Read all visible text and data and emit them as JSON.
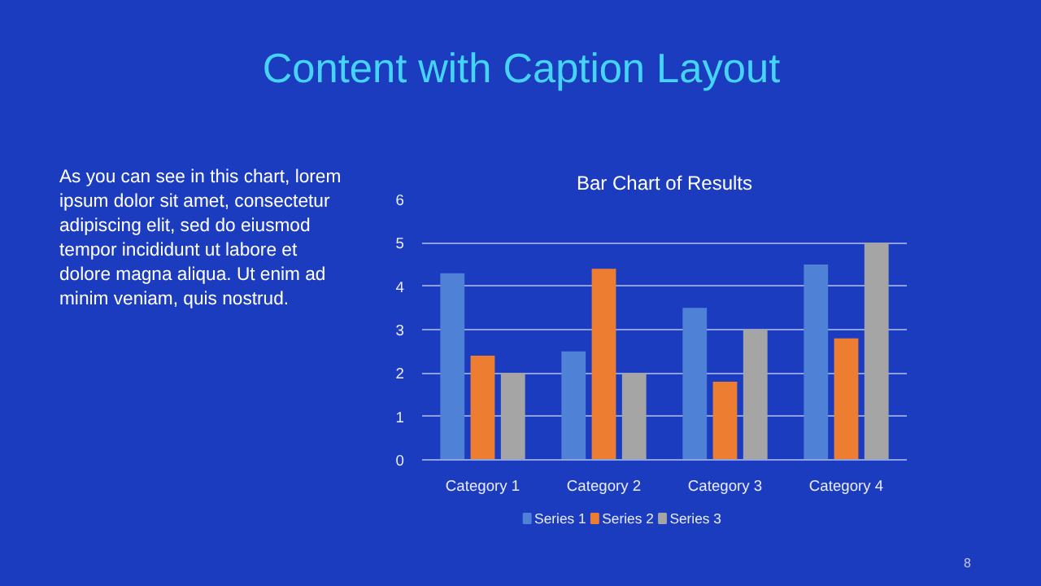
{
  "chart_data": {
    "type": "bar",
    "title": "Content with Caption Layout",
    "subtitle": "Bar Chart of Results",
    "annotations": [
      "As you can see in this chart, lorem ipsum dolor sit amet, consectetur adipiscing elit, sed do eiusmod tempor incididunt ut labore et dolore magna aliqua. Ut enim ad minim veniam, quis nostrud.",
      "8"
    ],
    "categories": [
      "Category 1",
      "Category 2",
      "Category 3",
      "Category 4"
    ],
    "series": [
      {
        "name": "Series 1",
        "color": "#4f81d6",
        "values": [
          4.3,
          2.5,
          3.5,
          4.5
        ]
      },
      {
        "name": "Series 2",
        "color": "#ed7d31",
        "values": [
          2.4,
          4.4,
          1.8,
          2.8
        ]
      },
      {
        "name": "Series 3",
        "color": "#a5a5a5",
        "values": [
          2,
          2,
          3,
          5
        ]
      }
    ],
    "ylim": [
      0,
      6
    ],
    "yticks": [
      0,
      1,
      2,
      3,
      4,
      5,
      6
    ],
    "grid": "y",
    "legend": "bottom"
  }
}
